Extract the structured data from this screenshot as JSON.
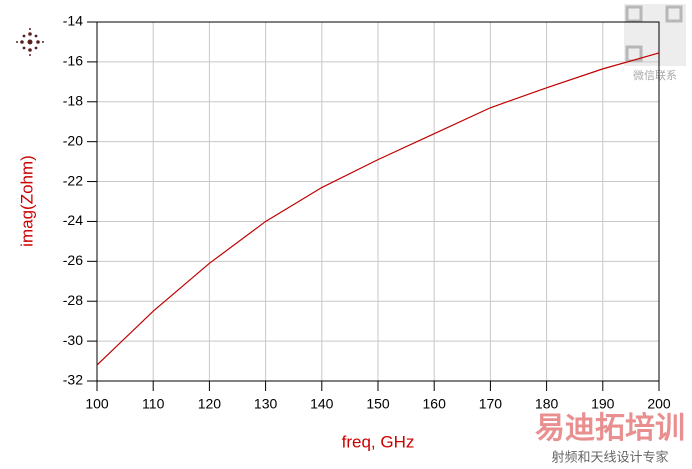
{
  "chart_data": {
    "type": "line",
    "xlabel": "freq, GHz",
    "ylabel": "imag(Zohm)",
    "x": [
      100,
      110,
      120,
      130,
      140,
      150,
      160,
      170,
      180,
      190,
      200
    ],
    "series": [
      {
        "color": "#c00000",
        "values": [
          -31.2,
          -28.5,
          -26.1,
          -24.0,
          -22.3,
          -20.9,
          -19.6,
          -18.3,
          -17.3,
          -16.35,
          -15.55
        ]
      }
    ],
    "xlim": [
      100,
      200
    ],
    "ylim": [
      -32,
      -14
    ],
    "xticks": [
      100,
      110,
      120,
      130,
      140,
      150,
      160,
      170,
      180,
      190,
      200
    ],
    "yticks": [
      -32,
      -30,
      -28,
      -26,
      -24,
      -22,
      -20,
      -18,
      -16,
      -14
    ],
    "grid": true,
    "label_color": "#cc0000"
  },
  "watermarks": {
    "qr_caption": "微信联系",
    "brand": "易迪拓培训",
    "slogan": "射频和天线设计专家"
  }
}
